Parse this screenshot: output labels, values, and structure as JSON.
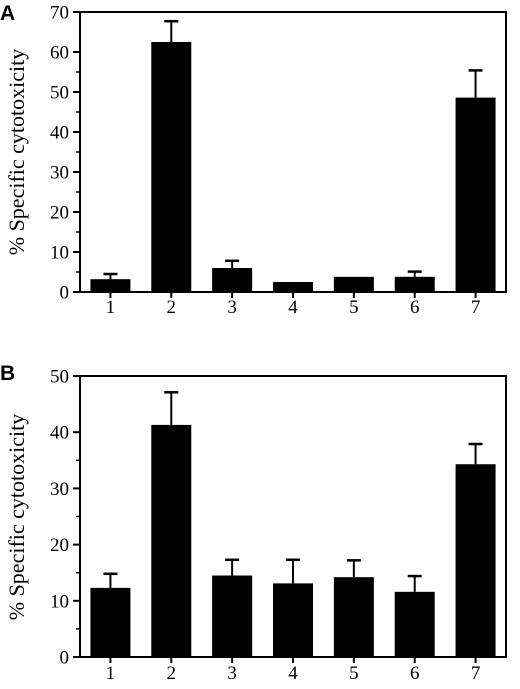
{
  "chart_data": [
    {
      "panel": "A",
      "type": "bar",
      "ylabel": "% Specific cytotoxicity",
      "xlabel": "",
      "categories": [
        "1",
        "2",
        "3",
        "4",
        "5",
        "6",
        "7"
      ],
      "values": [
        3.2,
        62.5,
        6.0,
        2.5,
        3.8,
        3.8,
        48.6
      ],
      "errors": [
        1.3,
        5.2,
        1.8,
        0.0,
        0.0,
        1.3,
        6.8
      ],
      "ylim": [
        0,
        70
      ],
      "yticks": [
        "0",
        "10",
        "20",
        "30",
        "40",
        "50",
        "60",
        "70"
      ],
      "grid": false,
      "bar_color": "#000000"
    },
    {
      "panel": "B",
      "type": "bar",
      "ylabel": "% Specific cytotoxicity",
      "xlabel": "",
      "categories": [
        "1",
        "2",
        "3",
        "4",
        "5",
        "6",
        "7"
      ],
      "values": [
        12.3,
        41.3,
        14.5,
        13.1,
        14.2,
        11.6,
        34.3
      ],
      "errors": [
        2.5,
        5.8,
        2.8,
        4.2,
        3.0,
        2.8,
        3.6
      ],
      "ylim": [
        0,
        50
      ],
      "yticks": [
        "0",
        "10",
        "20",
        "30",
        "40",
        "50"
      ],
      "grid": false,
      "bar_color": "#000000"
    }
  ]
}
